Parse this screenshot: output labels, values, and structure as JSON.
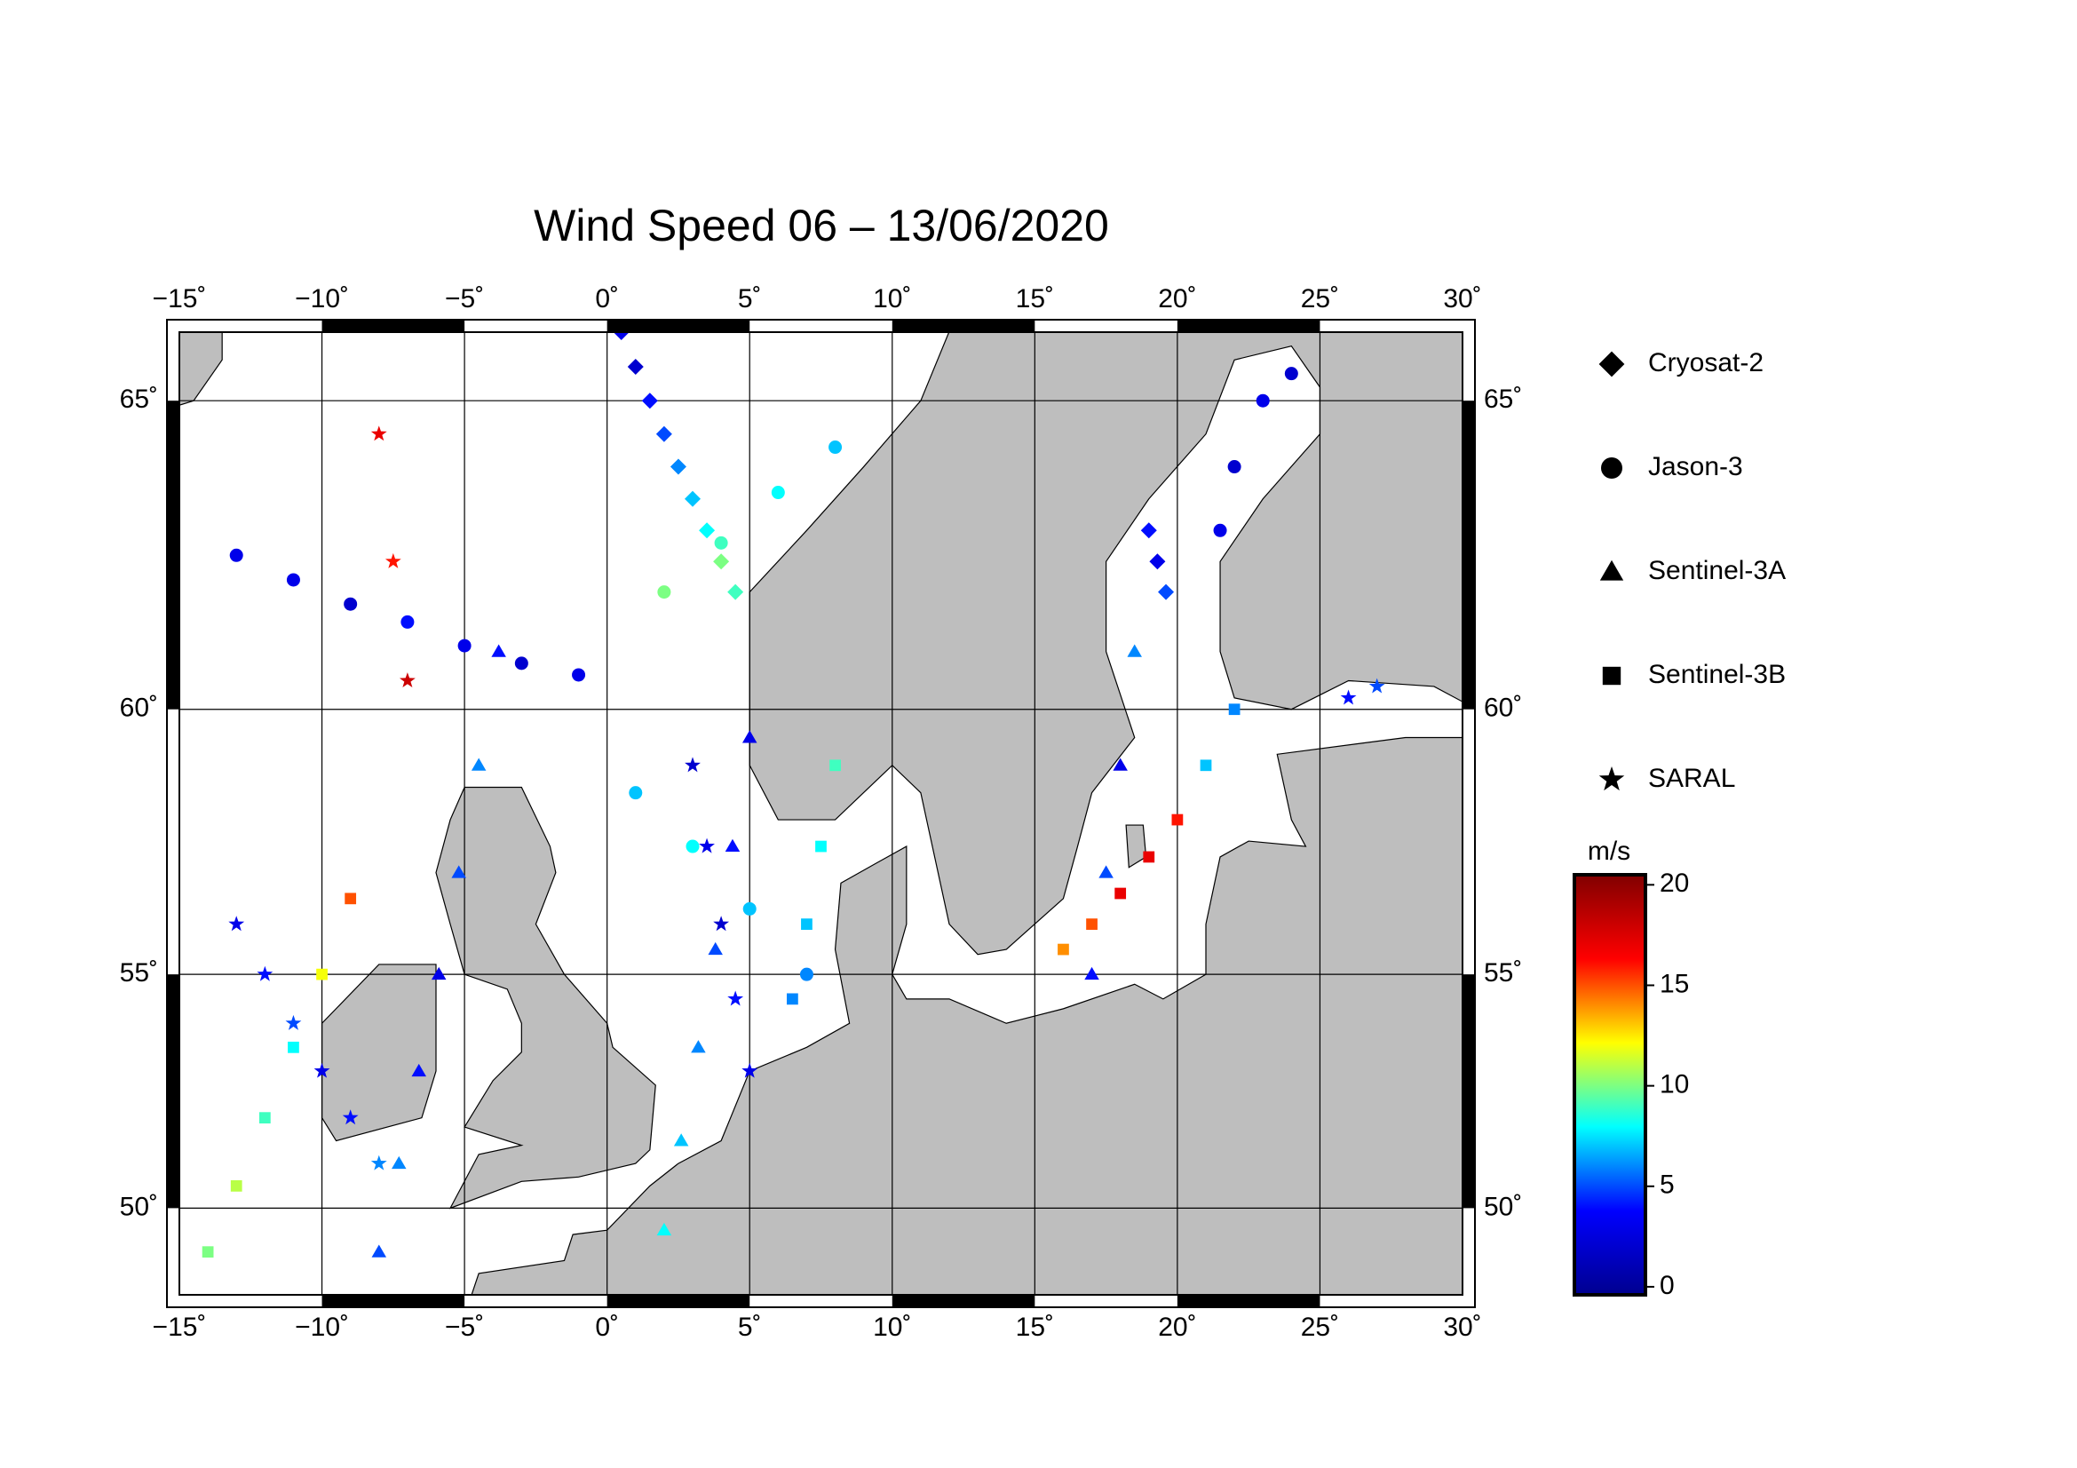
{
  "chart_data": {
    "type": "map",
    "title": "Wind Speed 06 – 13/06/2020",
    "xlim": [
      -15,
      30
    ],
    "ylim": [
      48,
      66
    ],
    "xticks": [
      {
        "value": -15,
        "label": "−15˚"
      },
      {
        "value": -10,
        "label": "−10˚"
      },
      {
        "value": -5,
        "label": "−5˚"
      },
      {
        "value": 0,
        "label": "0˚"
      },
      {
        "value": 5,
        "label": "5˚"
      },
      {
        "value": 10,
        "label": "10˚"
      },
      {
        "value": 15,
        "label": "15˚"
      },
      {
        "value": 20,
        "label": "20˚"
      },
      {
        "value": 25,
        "label": "25˚"
      },
      {
        "value": 30,
        "label": "30˚"
      }
    ],
    "yticks": [
      {
        "value": 50,
        "label": "50˚"
      },
      {
        "value": 55,
        "label": "55˚"
      },
      {
        "value": 60,
        "label": "60˚"
      },
      {
        "value": 65,
        "label": "65˚"
      }
    ],
    "projection": "mercator",
    "grid": true,
    "colorbar": {
      "label": "m/s",
      "clim": [
        -0.4,
        20.5
      ],
      "ticks": [
        0,
        5,
        10,
        15,
        20
      ],
      "colormap": [
        "#00008f",
        "#0000ff",
        "#00ffff",
        "#ffff00",
        "#ff0000",
        "#800000"
      ]
    },
    "series": [
      {
        "name": "Cryosat-2",
        "marker": "diamond",
        "x": [
          0.5,
          1.0,
          1.5,
          2.0,
          2.5,
          3.0,
          3.5,
          4.0,
          4.5,
          19.0,
          19.3,
          19.6
        ],
        "y": [
          66.0,
          65.5,
          65.0,
          64.5,
          64.0,
          63.5,
          63.0,
          62.5,
          62.0,
          63.0,
          62.5,
          62.0
        ],
        "values": [
          3,
          2,
          4,
          5,
          6,
          7,
          8,
          10,
          9,
          4,
          3,
          5
        ]
      },
      {
        "name": "Jason-3",
        "marker": "circle",
        "x": [
          -13,
          -11,
          -9,
          -7,
          -5,
          -3,
          -1,
          1,
          3,
          5,
          7,
          2,
          4,
          6,
          8,
          21.5,
          22,
          23,
          24
        ],
        "y": [
          62.6,
          62.2,
          61.8,
          61.5,
          61.1,
          60.8,
          60.6,
          58.5,
          57.5,
          56.3,
          55.0,
          62.0,
          62.8,
          63.6,
          64.3,
          63.0,
          64.0,
          65.0,
          65.4
        ],
        "values": [
          3,
          3,
          2,
          4,
          3,
          2,
          3,
          7,
          8,
          7,
          6,
          10,
          9,
          8,
          7,
          3,
          2,
          3,
          2
        ]
      },
      {
        "name": "Sentinel-3A",
        "marker": "triangle",
        "x": [
          -8,
          -7.3,
          -6.6,
          -5.9,
          -5.2,
          -4.5,
          -3.8,
          2,
          2.6,
          3.2,
          3.8,
          4.4,
          5,
          17,
          17.5,
          18,
          18.5
        ],
        "y": [
          49,
          51,
          53,
          55,
          57,
          59,
          61,
          49.5,
          51.5,
          53.5,
          55.5,
          57.5,
          59.5,
          55,
          57,
          59,
          61
        ],
        "values": [
          5,
          6,
          4,
          3,
          5,
          6,
          4,
          8,
          7,
          6,
          5,
          4,
          3,
          4,
          5,
          3,
          6
        ]
      },
      {
        "name": "Sentinel-3B",
        "marker": "square",
        "x": [
          -14,
          -13,
          -12,
          -11,
          -10,
          -9,
          8,
          7.5,
          7,
          6.5,
          16,
          17,
          18,
          19,
          20,
          21,
          22
        ],
        "y": [
          49,
          50.5,
          52,
          53.5,
          55,
          56.5,
          59,
          57.5,
          56,
          54.5,
          55.5,
          56,
          56.6,
          57.3,
          58,
          59,
          60
        ],
        "values": [
          10,
          11,
          9,
          8,
          12,
          15,
          9,
          8,
          7,
          6,
          14,
          15,
          17,
          17,
          16,
          7,
          6
        ]
      },
      {
        "name": "SARAL",
        "marker": "star",
        "x": [
          -13,
          -12,
          -11,
          -10,
          -9,
          -8,
          3,
          3.5,
          4,
          4.5,
          5,
          26,
          27,
          -8,
          -7.5,
          -7
        ],
        "y": [
          56,
          55,
          54,
          53,
          52,
          51,
          59,
          57.5,
          56,
          54.5,
          53,
          60.2,
          60.4,
          64.5,
          62.5,
          60.5
        ],
        "values": [
          3,
          4,
          5,
          3,
          4,
          6,
          2,
          3,
          2,
          4,
          3,
          4,
          5,
          17,
          16,
          18
        ]
      }
    ]
  }
}
